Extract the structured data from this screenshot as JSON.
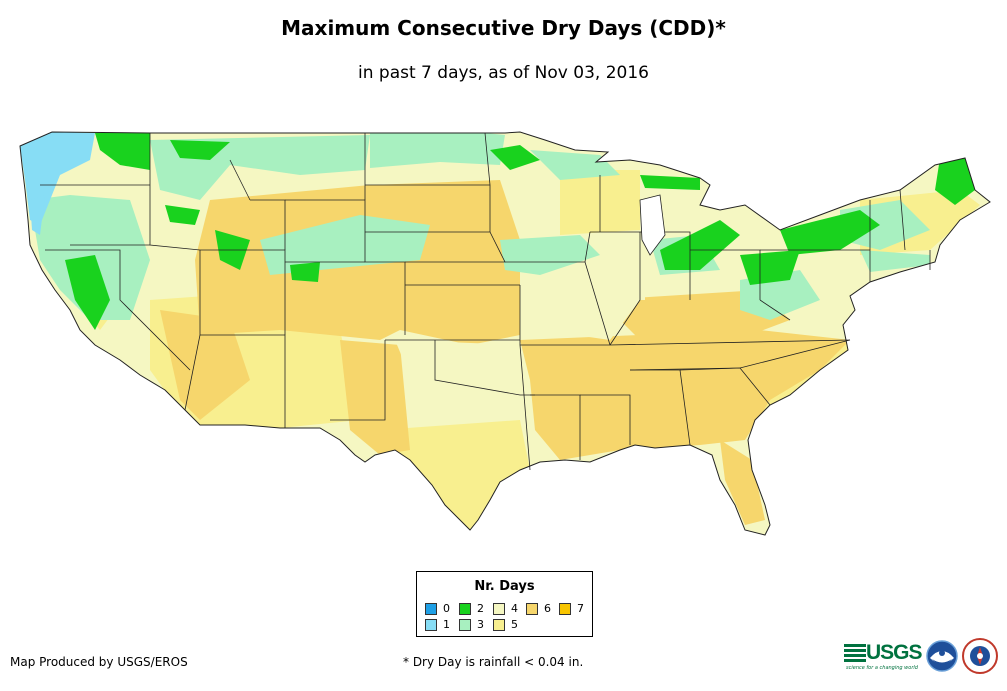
{
  "title": "Maximum Consecutive Dry Days (CDD)*",
  "subtitle": "in past 7 days, as of Nov 03, 2016",
  "legend": {
    "title": "Nr. Days",
    "items": [
      {
        "label": "0",
        "color": "#1fa0e6"
      },
      {
        "label": "1",
        "color": "#87ddf5"
      },
      {
        "label": "2",
        "color": "#19d21e"
      },
      {
        "label": "3",
        "color": "#a8f0c0"
      },
      {
        "label": "4",
        "color": "#f5f7c2"
      },
      {
        "label": "5",
        "color": "#f8ef8f"
      },
      {
        "label": "6",
        "color": "#f6d66c"
      },
      {
        "label": "7",
        "color": "#f8c500"
      }
    ]
  },
  "footer": {
    "credit": "Map Produced by USGS/EROS",
    "note": "* Dry Day is rainfall < 0.04 in."
  },
  "logos": {
    "usgs": "USGS",
    "usgs_tagline": "science for a changing world",
    "noaa": "noaa-logo",
    "nws": "nws-logo"
  }
}
